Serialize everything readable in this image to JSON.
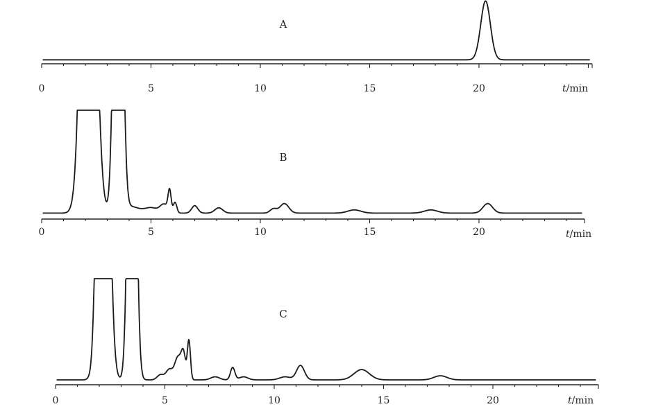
{
  "chart_data": [
    {
      "type": "line",
      "panel_label": "A",
      "xlabel_italic": "t",
      "xlabel_unit": "/min",
      "xlim": [
        0,
        25.5
      ],
      "xticks": [
        0,
        5,
        10,
        15,
        20
      ],
      "baseline": 0.02,
      "peak_cap": null,
      "peaks": [
        {
          "x": 20.3,
          "h": 1.0,
          "w": 0.22
        }
      ]
    },
    {
      "type": "line",
      "panel_label": "B",
      "xlabel_italic": "t",
      "xlabel_unit": "/min",
      "xlim": [
        0,
        25.5
      ],
      "xticks": [
        0,
        5,
        10,
        15,
        20
      ],
      "baseline": 0.03,
      "peak_cap": 1.0,
      "peaks": [
        {
          "x": 2.15,
          "h": 5.0,
          "w": 0.28
        },
        {
          "x": 1.8,
          "h": 0.25,
          "w": 0.12
        },
        {
          "x": 3.5,
          "h": 5.0,
          "w": 0.17
        },
        {
          "x": 4.1,
          "h": 0.06,
          "w": 0.35
        },
        {
          "x": 5.0,
          "h": 0.05,
          "w": 0.3
        },
        {
          "x": 5.6,
          "h": 0.08,
          "w": 0.18
        },
        {
          "x": 5.85,
          "h": 0.2,
          "w": 0.07
        },
        {
          "x": 6.1,
          "h": 0.1,
          "w": 0.08
        },
        {
          "x": 7.0,
          "h": 0.07,
          "w": 0.14
        },
        {
          "x": 8.1,
          "h": 0.05,
          "w": 0.18
        },
        {
          "x": 10.6,
          "h": 0.04,
          "w": 0.15
        },
        {
          "x": 11.1,
          "h": 0.09,
          "w": 0.2
        },
        {
          "x": 14.3,
          "h": 0.03,
          "w": 0.3
        },
        {
          "x": 17.8,
          "h": 0.03,
          "w": 0.3
        },
        {
          "x": 20.4,
          "h": 0.09,
          "w": 0.22
        }
      ]
    },
    {
      "type": "line",
      "panel_label": "C",
      "xlabel_italic": "t",
      "xlabel_unit": "/min",
      "xlim": [
        0,
        25.5
      ],
      "xticks": [
        0,
        5,
        10,
        15,
        20
      ],
      "baseline": 0.02,
      "peak_cap": 1.0,
      "peaks": [
        {
          "x": 2.2,
          "h": 5.0,
          "w": 0.22
        },
        {
          "x": 1.85,
          "h": 0.35,
          "w": 0.1
        },
        {
          "x": 3.5,
          "h": 5.0,
          "w": 0.16
        },
        {
          "x": 4.8,
          "h": 0.05,
          "w": 0.15
        },
        {
          "x": 5.2,
          "h": 0.1,
          "w": 0.15
        },
        {
          "x": 5.6,
          "h": 0.22,
          "w": 0.15
        },
        {
          "x": 5.85,
          "h": 0.24,
          "w": 0.1
        },
        {
          "x": 6.1,
          "h": 0.38,
          "w": 0.07
        },
        {
          "x": 7.3,
          "h": 0.03,
          "w": 0.2
        },
        {
          "x": 8.1,
          "h": 0.12,
          "w": 0.1
        },
        {
          "x": 8.6,
          "h": 0.03,
          "w": 0.2
        },
        {
          "x": 10.5,
          "h": 0.03,
          "w": 0.25
        },
        {
          "x": 11.2,
          "h": 0.14,
          "w": 0.18
        },
        {
          "x": 14.0,
          "h": 0.1,
          "w": 0.35
        },
        {
          "x": 17.6,
          "h": 0.04,
          "w": 0.3
        }
      ]
    }
  ]
}
